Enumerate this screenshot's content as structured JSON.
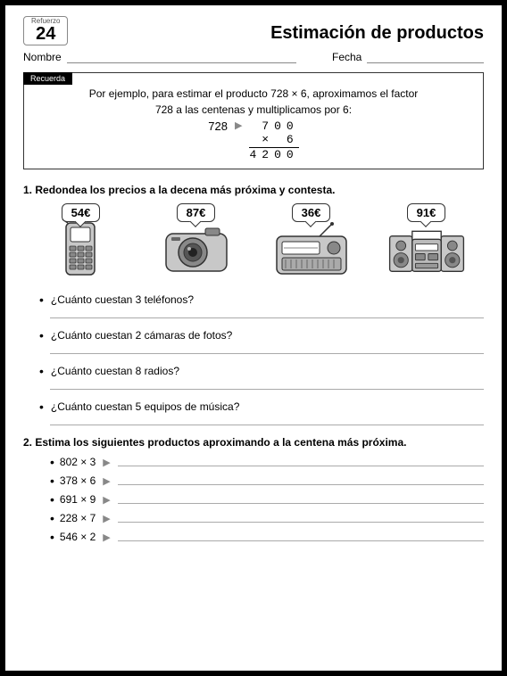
{
  "header": {
    "unit_label": "Refuerzo",
    "unit_number": "24",
    "title": "Estimación de productos"
  },
  "fields": {
    "name_label": "Nombre",
    "date_label": "Fecha"
  },
  "remember": {
    "tab": "Recuerda",
    "text_line1": "Por ejemplo, para estimar el producto 728 × 6, aproximamos el factor",
    "text_line2": "728 a las centenas y multiplicamos por 6:",
    "original": "728",
    "rounded": "700",
    "multiplier": "×    6",
    "result": "4200"
  },
  "q1": {
    "number": "1.",
    "text": "Redondea los precios a la decena más próxima y contesta.",
    "products": [
      {
        "price": "54€",
        "name": "phone"
      },
      {
        "price": "87€",
        "name": "camera"
      },
      {
        "price": "36€",
        "name": "radio"
      },
      {
        "price": "91€",
        "name": "stereo"
      }
    ],
    "questions": [
      "¿Cuánto cuestan 3 teléfonos?",
      "¿Cuánto cuestan 2 cámaras de fotos?",
      "¿Cuánto cuestan 8 radios?",
      "¿Cuánto cuestan 5 equipos de música?"
    ]
  },
  "q2": {
    "number": "2.",
    "text": "Estima los siguientes productos aproximando a la centena más próxima.",
    "items": [
      "802 × 3",
      "378 × 6",
      "691 × 9",
      "228 × 7",
      "546 × 2"
    ]
  },
  "colors": {
    "gray_fill": "#c8c8c8",
    "dark_fill": "#888888",
    "stroke": "#333333"
  }
}
